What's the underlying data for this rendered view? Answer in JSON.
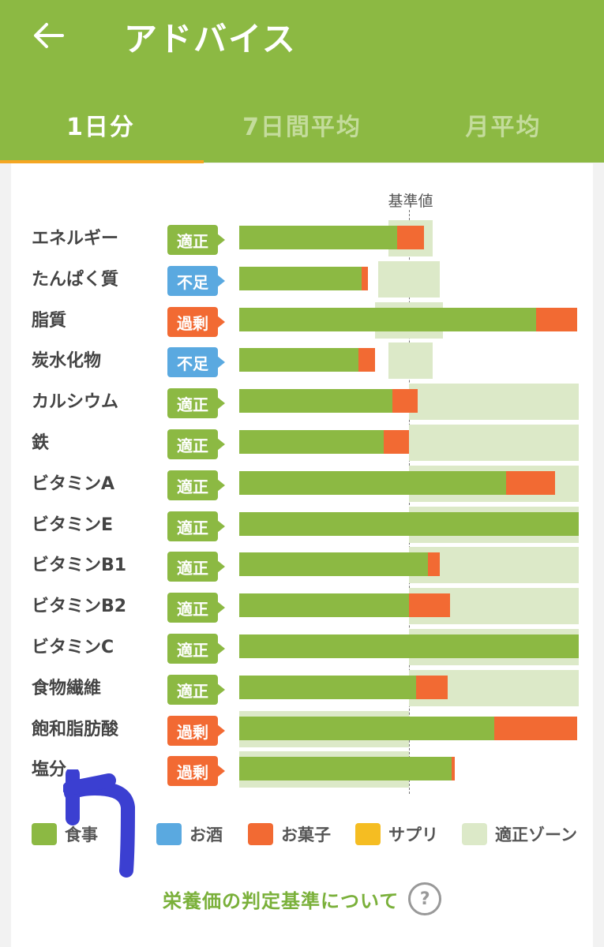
{
  "header": {
    "title": "アドバイス",
    "back_icon": "arrow-left-icon",
    "bg_color": "#8cb943"
  },
  "tabs": [
    {
      "label": "1日分",
      "active": true
    },
    {
      "label": "7日間平均",
      "active": false
    },
    {
      "label": "月平均",
      "active": false
    }
  ],
  "chart": {
    "reference_label": "基準値",
    "rows": [
      {
        "name": "エネルギー",
        "status": "適正",
        "status_type": "ok"
      },
      {
        "name": "たんぱく質",
        "status": "不足",
        "status_type": "low"
      },
      {
        "name": "脂質",
        "status": "過剰",
        "status_type": "high"
      },
      {
        "name": "炭水化物",
        "status": "不足",
        "status_type": "low"
      },
      {
        "name": "カルシウム",
        "status": "適正",
        "status_type": "ok"
      },
      {
        "name": "鉄",
        "status": "適正",
        "status_type": "ok"
      },
      {
        "name": "ビタミンA",
        "status": "適正",
        "status_type": "ok"
      },
      {
        "name": "ビタミンE",
        "status": "適正",
        "status_type": "ok"
      },
      {
        "name": "ビタミンB1",
        "status": "適正",
        "status_type": "ok"
      },
      {
        "name": "ビタミンB2",
        "status": "適正",
        "status_type": "ok"
      },
      {
        "name": "ビタミンC",
        "status": "適正",
        "status_type": "ok"
      },
      {
        "name": "食物繊維",
        "status": "適正",
        "status_type": "ok"
      },
      {
        "name": "飽和脂肪酸",
        "status": "過剰",
        "status_type": "high"
      },
      {
        "name": "塩分",
        "status": "過剰",
        "status_type": "high"
      }
    ]
  },
  "chart_data": {
    "type": "bar",
    "orientation": "horizontal",
    "stacked": true,
    "categories": [
      "エネルギー",
      "たんぱく質",
      "脂質",
      "炭水化物",
      "カルシウム",
      "鉄",
      "ビタミンA",
      "ビタミンE",
      "ビタミンB1",
      "ビタミンB2",
      "ビタミンC",
      "食物繊維",
      "飽和脂肪酸",
      "塩分"
    ],
    "units": "fraction of reference value (基準値 = 1.0)",
    "series": [
      {
        "name": "食事",
        "color": "#8cb943",
        "values": [
          0.93,
          0.72,
          1.75,
          0.7,
          0.9,
          0.85,
          1.57,
          2.0,
          1.11,
          1.0,
          2.0,
          1.04,
          1.5,
          1.25
        ]
      },
      {
        "name": "お酒",
        "color": "#5aa9e0",
        "values": [
          0,
          0,
          0,
          0,
          0,
          0,
          0,
          0,
          0,
          0,
          0,
          0,
          0,
          0
        ]
      },
      {
        "name": "お菓子",
        "color": "#f26a33",
        "values": [
          0.16,
          0.04,
          0.24,
          0.1,
          0.15,
          0.15,
          0.29,
          0,
          0.07,
          0.24,
          0,
          0.19,
          0.49,
          0.02
        ]
      },
      {
        "name": "サプリ",
        "color": "#f5bd22",
        "values": [
          0,
          0,
          0,
          0,
          0,
          0,
          0,
          0,
          0,
          0,
          0,
          0,
          0,
          0
        ]
      }
    ],
    "zones": [
      [
        0.88,
        1.14
      ],
      [
        0.82,
        1.18
      ],
      [
        0.8,
        1.2
      ],
      [
        0.88,
        1.14
      ],
      [
        1.0,
        2.0
      ],
      [
        1.0,
        2.0
      ],
      [
        1.0,
        2.0
      ],
      [
        1.0,
        2.0
      ],
      [
        1.0,
        2.0
      ],
      [
        1.0,
        2.0
      ],
      [
        1.0,
        2.0
      ],
      [
        1.0,
        2.0
      ],
      [
        0.0,
        1.0
      ],
      [
        0.0,
        1.0
      ]
    ],
    "reference_value": 1.0,
    "xlim": [
      0,
      2.0
    ]
  },
  "legend": [
    {
      "label": "食事",
      "color": "#8cb943"
    },
    {
      "label": "お酒",
      "color": "#5aa9e0"
    },
    {
      "label": "お菓子",
      "color": "#f26a33"
    },
    {
      "label": "サプリ",
      "color": "#f5bd22"
    },
    {
      "label": "適正ゾーン",
      "color": "#dce9c8"
    }
  ],
  "footer": {
    "link_label": "栄養価の判定基準について",
    "help_icon": "question-circle-icon"
  },
  "annotation": {
    "arrow_icon": "blue-arrow-annotation-icon",
    "color": "#3b3fd1"
  }
}
